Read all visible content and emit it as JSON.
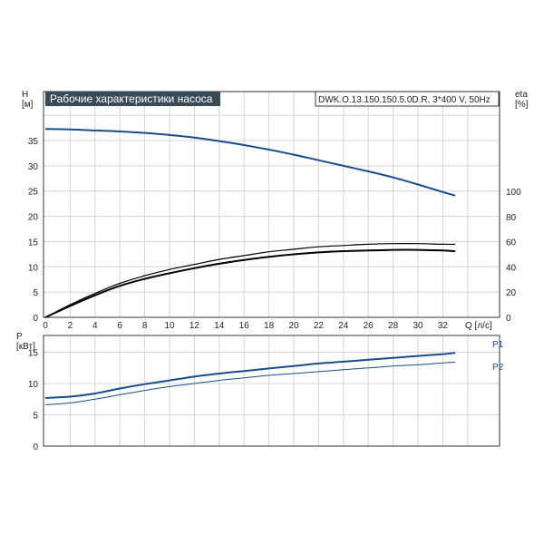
{
  "title": "Рабочие характеристики насоса",
  "model": "DWK.O.13.150.150.5.0D.R, 3*400 V, 50Hz",
  "colors": {
    "title_bg": "#3b4a57",
    "head_curve": "#1a4c8c",
    "eff_curve": "#000000",
    "power_curve": "#1a4c8c",
    "grid": "#d4d4d4"
  },
  "chart_data": [
    {
      "type": "line",
      "xlabel": "Q [л/с]",
      "ylabel": "H\n[м]",
      "y2label": "eta\n[%]",
      "xlim": [
        0,
        36
      ],
      "ylim": [
        0,
        40
      ],
      "y2lim": [
        0,
        160
      ],
      "xticks": [
        0,
        2,
        4,
        6,
        8,
        10,
        12,
        14,
        16,
        18,
        20,
        22,
        24,
        26,
        28,
        30,
        32
      ],
      "yticks": [
        0,
        5,
        10,
        15,
        20,
        25,
        30,
        35
      ],
      "y2ticks": [
        0,
        20,
        40,
        60,
        80,
        100
      ],
      "grid": true,
      "series": [
        {
          "axis": "left",
          "x": [
            0,
            2,
            4,
            6,
            8,
            10,
            12,
            14,
            16,
            18,
            20,
            22,
            24,
            26,
            28,
            30,
            32,
            33
          ],
          "values": [
            37.3,
            37.2,
            37.0,
            36.8,
            36.5,
            36.1,
            35.6,
            34.9,
            34.1,
            33.2,
            32.2,
            31.1,
            30.0,
            28.9,
            27.7,
            26.3,
            24.8,
            24.1
          ]
        },
        {
          "axis": "right",
          "x": [
            0,
            2,
            4,
            6,
            8,
            10,
            12,
            14,
            16,
            18,
            20,
            22,
            24,
            26,
            28,
            30,
            32,
            33
          ],
          "values": [
            0,
            10,
            19,
            27,
            33,
            38,
            42,
            46,
            49,
            52,
            54,
            56,
            57,
            58,
            58.5,
            58.5,
            58,
            58
          ]
        },
        {
          "axis": "right",
          "x": [
            0,
            2,
            4,
            6,
            8,
            10,
            12,
            14,
            16,
            18,
            20,
            22,
            24,
            26,
            28,
            30,
            32,
            33
          ],
          "values": [
            0,
            9,
            17.5,
            25,
            30.5,
            35,
            39,
            42.5,
            45.5,
            48,
            50,
            51.5,
            52.5,
            53,
            53.5,
            53.5,
            53,
            52.5
          ]
        }
      ]
    },
    {
      "type": "line",
      "xlabel": "",
      "ylabel": "P\n[кВт]",
      "xlim": [
        0,
        36
      ],
      "ylim": [
        0,
        20
      ],
      "yticks": [
        0,
        5,
        10,
        15
      ],
      "grid": true,
      "series": [
        {
          "name": "P1",
          "x": [
            0,
            2,
            4,
            6,
            8,
            10,
            12,
            14,
            16,
            18,
            20,
            22,
            24,
            26,
            28,
            30,
            32,
            33
          ],
          "values": [
            7.7,
            7.9,
            8.4,
            9.2,
            9.9,
            10.5,
            11.1,
            11.6,
            12.0,
            12.4,
            12.8,
            13.2,
            13.5,
            13.8,
            14.1,
            14.4,
            14.7,
            14.9
          ]
        },
        {
          "name": "P2",
          "x": [
            0,
            2,
            4,
            6,
            8,
            10,
            12,
            14,
            16,
            18,
            20,
            22,
            24,
            26,
            28,
            30,
            32,
            33
          ],
          "values": [
            6.6,
            6.9,
            7.5,
            8.2,
            8.9,
            9.5,
            10.0,
            10.5,
            10.9,
            11.3,
            11.6,
            11.9,
            12.2,
            12.5,
            12.8,
            13.0,
            13.3,
            13.4
          ]
        }
      ]
    }
  ]
}
